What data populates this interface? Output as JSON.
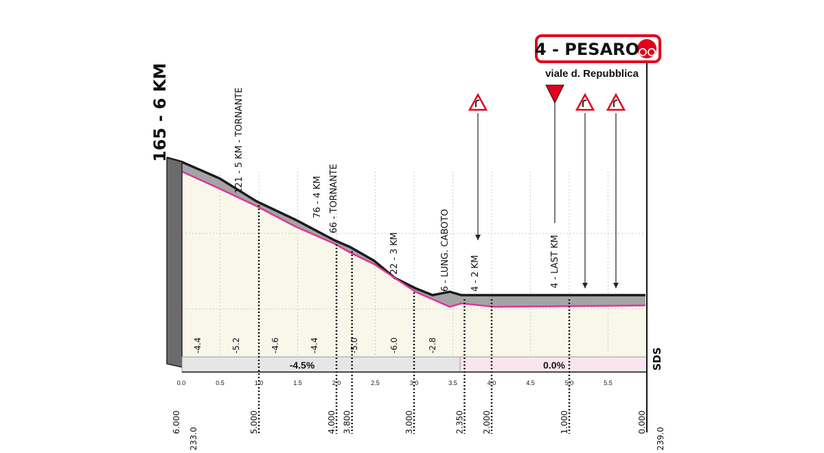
{
  "header": {
    "title": "4 - PESARO",
    "subtitle": "viale d. Repubblica",
    "side_label": "165 - 6 KM"
  },
  "annotations": [
    "121 - 5 KM - TORNANTE",
    "76 - 4 KM",
    "66 - TORNANTE",
    "22 - 3 KM",
    "6 - LUNG. CABOTO",
    "4 - 2 KM",
    "4 - LAST KM"
  ],
  "gradients": [
    "-4.4",
    "-5.2",
    "-4.6",
    "-4.4",
    "-5.0",
    "-6.0",
    "-2.8"
  ],
  "average_gradients": [
    "-4.5%",
    "0.0%"
  ],
  "distance_scale": [
    "0.0",
    "0.5",
    "1.0",
    "1.5",
    "2.0",
    "2.5",
    "3.0",
    "3.5",
    "4.0",
    "4.5",
    "5.0",
    "5.5"
  ],
  "remaining_km": [
    "6.000",
    "5.000",
    "4.000",
    "3.800",
    "3.000",
    "2.350",
    "2.000",
    "1.000",
    "0.000"
  ],
  "km_marks": [
    "km 233.0",
    "km 239.0"
  ],
  "logo": "SDS"
}
